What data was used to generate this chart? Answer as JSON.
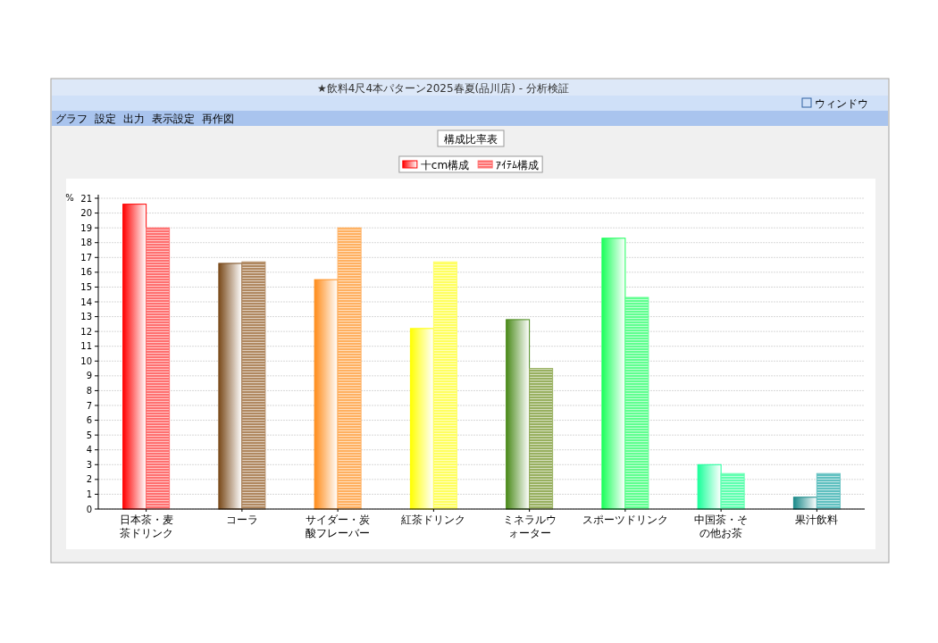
{
  "chart_data": {
    "type": "bar",
    "title": "★飲料4尺4本パターン2025春夏(品川店) - 分析検証",
    "annotations": [
      "グラフ",
      "設定",
      "出力",
      "表示設定",
      "再作図",
      "ウィンドウ",
      "構成比率表"
    ],
    "ylabel": "%",
    "categories": [
      "日本茶・麦茶ドリンク",
      "コーラ",
      "サイダー・炭酸フレーバー",
      "紅茶ドリンク",
      "ミネラルウォーター",
      "スポーツドリンク",
      "中国茶・その他お茶",
      "果汁飲料"
    ],
    "series": [
      {
        "name": "十cm構成",
        "colors": [
          "#ff0000",
          "#7a4a1a",
          "#ff8c1a",
          "#ffff00",
          "#4a8a1a",
          "#1aff5a",
          "#1aff9a",
          "#1a8a8a"
        ],
        "values": [
          20.6,
          16.6,
          15.5,
          12.2,
          12.8,
          18.3,
          3.0,
          0.8
        ]
      },
      {
        "name": "ｱｲﾃﾑ構成",
        "colors": [
          "#ff7070",
          "#b08860",
          "#ffb060",
          "#ffff60",
          "#98b060",
          "#60ff90",
          "#60ffb0",
          "#60c0c0"
        ],
        "values": [
          19.0,
          16.7,
          19.0,
          16.7,
          9.5,
          14.3,
          2.4,
          2.4
        ]
      }
    ],
    "ylim": [
      0,
      21
    ],
    "yticks": [
      0,
      1,
      2,
      3,
      4,
      5,
      6,
      7,
      8,
      9,
      10,
      11,
      12,
      13,
      14,
      15,
      16,
      17,
      18,
      19,
      20,
      21
    ],
    "grid": "y",
    "legend": "top"
  }
}
